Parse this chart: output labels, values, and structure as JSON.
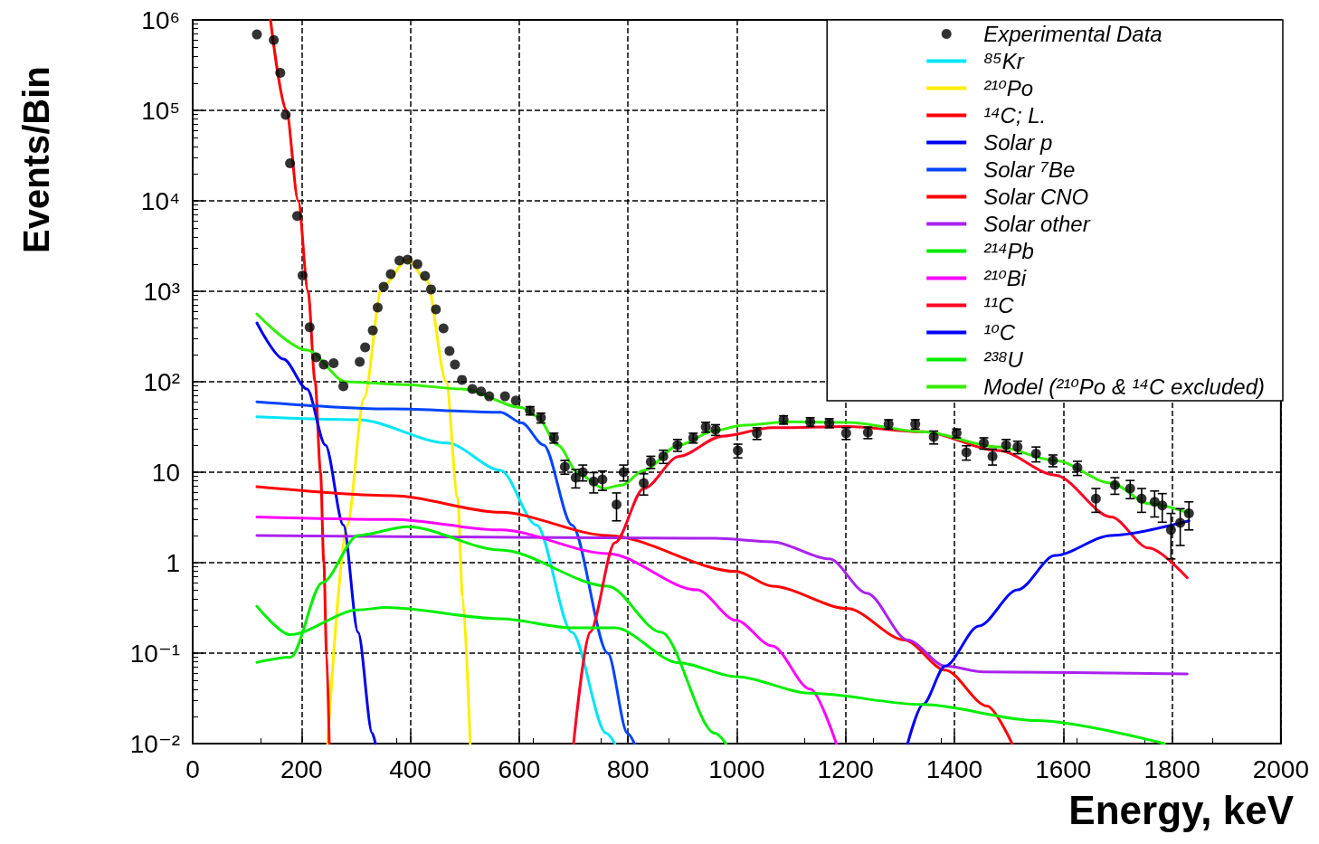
{
  "chart_data": {
    "type": "line",
    "xlabel": "Energy, keV",
    "ylabel": "Events/Bin",
    "log": "y",
    "grid": true,
    "legend": "top right",
    "line_style": "solid",
    "xlim": [
      0,
      2000
    ],
    "xticks": [
      0,
      200,
      400,
      600,
      800,
      1000,
      1200,
      1400,
      1600,
      1800,
      2000
    ],
    "ylim": [
      0.01,
      1000000
    ],
    "yticks": [
      {
        "value": 0.01,
        "label": "10⁻²"
      },
      {
        "value": 0.1,
        "label": "10⁻¹"
      },
      1,
      10,
      {
        "value": 100,
        "label": "10²"
      },
      {
        "value": 1000,
        "label": "10³"
      },
      {
        "value": 10000,
        "label": "10⁴"
      },
      {
        "value": 100000,
        "label": "10⁵"
      },
      {
        "value": 1000000,
        "label": "10⁶"
      }
    ],
    "series": [
      {
        "name": "Experimental Data",
        "type": "scatter",
        "marker": "circle",
        "color": "#000000",
        "x": [
          118,
          149,
          161,
          171,
          179,
          192,
          202,
          215,
          227,
          241,
          259,
          277,
          307,
          317,
          331,
          340,
          351,
          364,
          380,
          395,
          413,
          427,
          438,
          447,
          461,
          472,
          482,
          495,
          514,
          530,
          545,
          574,
          594,
          620,
          640,
          664,
          684,
          704,
          717,
          737,
          753,
          779,
          792,
          829,
          842,
          865,
          891,
          920,
          943,
          961,
          1002,
          1037,
          1086,
          1135,
          1170,
          1201,
          1241,
          1279,
          1328,
          1362,
          1404,
          1422,
          1454,
          1470,
          1495,
          1516,
          1550,
          1581,
          1626,
          1660,
          1695,
          1723,
          1744,
          1768,
          1782,
          1798,
          1815,
          1831
        ],
        "values": [
          690000,
          600000,
          260000,
          89000,
          26000,
          6800,
          1500,
          400,
          186,
          155,
          160,
          89,
          166,
          240,
          370,
          660,
          1120,
          1550,
          2190,
          2240,
          2000,
          1480,
          1050,
          630,
          390,
          219,
          155,
          105,
          83,
          78,
          69,
          69,
          62,
          48,
          40,
          24,
          11.5,
          8.7,
          10,
          7.9,
          8.3,
          4.4,
          10,
          7.6,
          13,
          15,
          20,
          24,
          31.6,
          29.5,
          17.4,
          27,
          38,
          36,
          35,
          27,
          27.5,
          34,
          34,
          24.5,
          27,
          16.6,
          21,
          15,
          20,
          19,
          16,
          13.5,
          11.2,
          5.1,
          7.2,
          6.6,
          5.1,
          4.7,
          4.3,
          2.3,
          2.75,
          3.5
        ],
        "errors": [
          null,
          null,
          null,
          null,
          null,
          null,
          null,
          null,
          null,
          null,
          null,
          null,
          null,
          null,
          null,
          null,
          null,
          null,
          null,
          null,
          null,
          null,
          null,
          null,
          null,
          null,
          null,
          null,
          null,
          null,
          null,
          null,
          null,
          5,
          5,
          3,
          2,
          2,
          2,
          2,
          2,
          1.5,
          2,
          2,
          2,
          2.5,
          3,
          3,
          4,
          4,
          3,
          4,
          4,
          4,
          4,
          4,
          4,
          4,
          4,
          4,
          3,
          3,
          3,
          3,
          3,
          3,
          3,
          2,
          2,
          1.5,
          1.5,
          1.5,
          1.5,
          1.5,
          1.5,
          1.2,
          1.2,
          1.2
        ]
      },
      {
        "name": "⁸⁵Kr",
        "color": "#00e5f5",
        "x": [
          118,
          304,
          468,
          566,
          632,
          697,
          760,
          776
        ],
        "values": [
          41,
          38,
          21,
          10.5,
          2.6,
          0.17,
          0.013,
          0.01
        ]
      },
      {
        "name": "²¹⁰Po",
        "color": "#ffee00",
        "x": [
          248,
          284,
          315,
          348,
          395,
          430,
          466,
          487,
          496,
          510
        ],
        "values": [
          0.01,
          2.6,
          66,
          1120,
          2240,
          1320,
          100,
          5.2,
          0.42,
          0.01
        ]
      },
      {
        "name": "¹⁴C; L.",
        "color": "#ff0000",
        "x": [
          143,
          172,
          194,
          212,
          225,
          235,
          241,
          246,
          251
        ],
        "values": [
          1000000,
          100000,
          10000,
          1000,
          100,
          10,
          1,
          0.1,
          0.01
        ]
      },
      {
        "name": "Solar p",
        "color": "#0000ee",
        "x": [
          118,
          167,
          210,
          244,
          277,
          304,
          330,
          336
        ],
        "values": [
          447,
          178,
          83,
          20,
          2.6,
          0.17,
          0.013,
          0.01
        ]
      },
      {
        "name": "Solar ⁷Be",
        "color": "#0044ff",
        "x": [
          118,
          369,
          566,
          605,
          645,
          697,
          763,
          799,
          812
        ],
        "values": [
          60,
          50,
          46,
          35,
          20,
          2.6,
          0.1,
          0.013,
          0.01
        ]
      },
      {
        "name": "Solar CNO",
        "color": "#ff0000",
        "x": [
          118,
          369,
          566,
          763,
          999,
          1065,
          1204,
          1308,
          1383,
          1460,
          1506
        ],
        "values": [
          6.9,
          5.5,
          3.6,
          2,
          0.8,
          0.55,
          0.31,
          0.14,
          0.065,
          0.026,
          0.01
        ]
      },
      {
        "name": "Solar other",
        "color": "#aa22ee",
        "x": [
          118,
          960,
          1065,
          1170,
          1239,
          1314,
          1383,
          1454,
          1828
        ],
        "values": [
          2,
          1.86,
          1.7,
          1.1,
          0.46,
          0.14,
          0.072,
          0.062,
          0.059
        ]
      },
      {
        "name": "²¹⁴Pb",
        "color": "#00ee00",
        "x": [
          118,
          180,
          238,
          304,
          395,
          566,
          763,
          861,
          960,
          980
        ],
        "values": [
          0.079,
          0.09,
          0.6,
          2,
          2.5,
          1.38,
          0.55,
          0.17,
          0.013,
          0.01
        ]
      },
      {
        "name": "²¹⁰Bi",
        "color": "#ff00ff",
        "x": [
          118,
          369,
          566,
          763,
          927,
          999,
          1065,
          1135,
          1183
        ],
        "values": [
          3.2,
          3,
          2.3,
          1.26,
          0.5,
          0.23,
          0.12,
          0.04,
          0.01
        ]
      },
      {
        "name": "¹¹C",
        "color": "#ff0022",
        "x": [
          700,
          730,
          776,
          829,
          894,
          973,
          1065,
          1204,
          1342,
          1481,
          1585,
          1688,
          1757,
          1828
        ],
        "values": [
          0.01,
          0.17,
          1.66,
          6.6,
          15,
          25,
          31,
          32,
          28,
          17.4,
          9.3,
          3.2,
          1.45,
          0.68
        ]
      },
      {
        "name": "¹⁰C",
        "color": "#0000ff",
        "x": [
          1314,
          1342,
          1383,
          1445,
          1516,
          1585,
          1688,
          1831
        ],
        "values": [
          0.01,
          0.027,
          0.072,
          0.2,
          0.5,
          1.2,
          2,
          2.9
        ]
      },
      {
        "name": "²³⁸U",
        "color": "#00ee00",
        "x": [
          118,
          179,
          304,
          356,
          566,
          697,
          776,
          894,
          999,
          1135,
          1342,
          1550,
          1786
        ],
        "values": [
          0.33,
          0.16,
          0.3,
          0.32,
          0.24,
          0.19,
          0.19,
          0.078,
          0.055,
          0.036,
          0.027,
          0.018,
          0.01
        ]
      },
      {
        "name": "Model (²¹⁰Po & ¹⁴C excluded)",
        "color": "#33ee00",
        "x": [
          118,
          210,
          282,
          390,
          495,
          604,
          632,
          671,
          710,
          756,
          789,
          829,
          894,
          960,
          1009,
          1099,
          1204,
          1342,
          1481,
          1585,
          1688,
          1757,
          1828
        ],
        "values": [
          562,
          224,
          100,
          93,
          83,
          52,
          42,
          20,
          9.5,
          6.6,
          7.2,
          10.5,
          20,
          28.8,
          33,
          36,
          35.5,
          28,
          19,
          13.5,
          7.6,
          4.5,
          3.6
        ]
      }
    ]
  }
}
